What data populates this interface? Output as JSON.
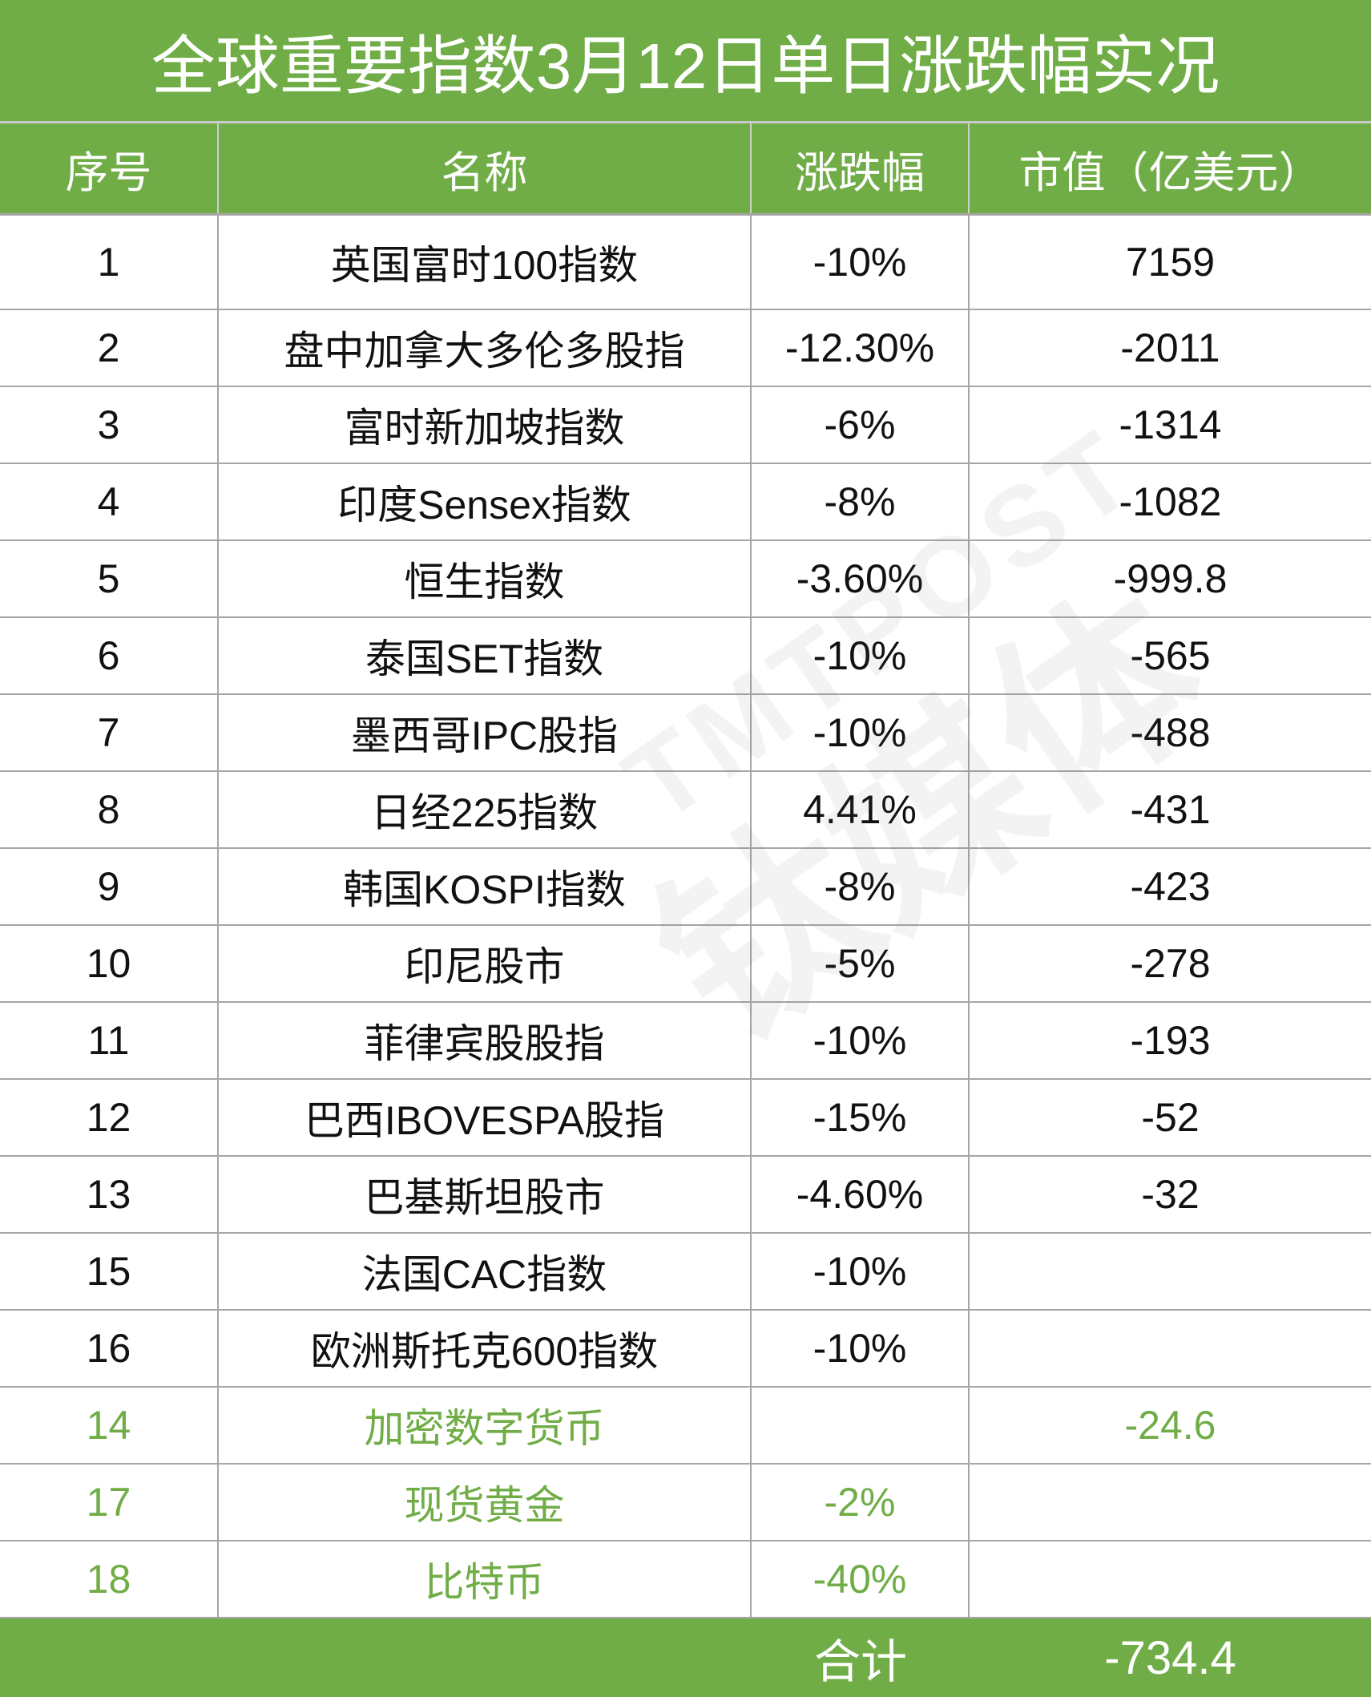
{
  "colors": {
    "header_bg": "#70ad47",
    "highlight_text": "#70ad47",
    "border": "#a6a6a6"
  },
  "watermark": {
    "latin": "TMTPOST",
    "cjk": "钛媒体"
  },
  "chart_data": {
    "type": "table",
    "title": "全球重要指数3月12日单日涨跌幅实况",
    "columns": [
      "序号",
      "名称",
      "涨跌幅",
      "市值（亿美元）"
    ],
    "rows": [
      {
        "no": "1",
        "name": "英国富时100指数",
        "change": "-10%",
        "value": "7159",
        "highlight": false
      },
      {
        "no": "2",
        "name": "盘中加拿大多伦多股指",
        "change": "-12.30%",
        "value": "-2011",
        "highlight": false
      },
      {
        "no": "3",
        "name": "富时新加坡指数",
        "change": "-6%",
        "value": "-1314",
        "highlight": false
      },
      {
        "no": "4",
        "name": "印度Sensex指数",
        "change": "-8%",
        "value": "-1082",
        "highlight": false
      },
      {
        "no": "5",
        "name": "恒生指数",
        "change": "-3.60%",
        "value": "-999.8",
        "highlight": false
      },
      {
        "no": "6",
        "name": "泰国SET指数",
        "change": "-10%",
        "value": "-565",
        "highlight": false
      },
      {
        "no": "7",
        "name": "墨西哥IPC股指",
        "change": "-10%",
        "value": "-488",
        "highlight": false
      },
      {
        "no": "8",
        "name": "日经225指数",
        "change": "4.41%",
        "value": "-431",
        "highlight": false
      },
      {
        "no": "9",
        "name": "韩国KOSPI指数",
        "change": "-8%",
        "value": "-423",
        "highlight": false
      },
      {
        "no": "10",
        "name": "印尼股市",
        "change": "-5%",
        "value": "-278",
        "highlight": false
      },
      {
        "no": "11",
        "name": "菲律宾股股指",
        "change": "-10%",
        "value": "-193",
        "highlight": false
      },
      {
        "no": "12",
        "name": "巴西IBOVESPA股指",
        "change": "-15%",
        "value": "-52",
        "highlight": false
      },
      {
        "no": "13",
        "name": "巴基斯坦股市",
        "change": "-4.60%",
        "value": "-32",
        "highlight": false
      },
      {
        "no": "15",
        "name": "法国CAC指数",
        "change": "-10%",
        "value": "",
        "highlight": false
      },
      {
        "no": "16",
        "name": "欧洲斯托克600指数",
        "change": "-10%",
        "value": "",
        "highlight": false
      },
      {
        "no": "14",
        "name": "加密数字货币",
        "change": "",
        "value": "-24.6",
        "highlight": true
      },
      {
        "no": "17",
        "name": "现货黄金",
        "change": "-2%",
        "value": "",
        "highlight": true
      },
      {
        "no": "18",
        "name": "比特币",
        "change": "-40%",
        "value": "",
        "highlight": true
      }
    ],
    "total": {
      "label": "合计",
      "value": "-734.4"
    }
  }
}
